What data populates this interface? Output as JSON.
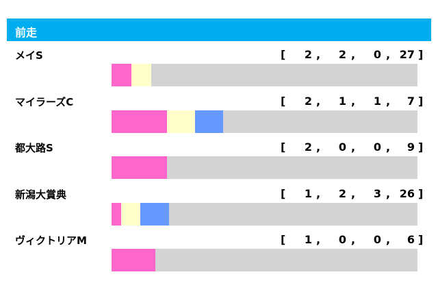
{
  "header": {
    "title": "前走"
  },
  "record_format": {
    "open": "[",
    "separator": ",",
    "close": "]"
  },
  "colors": [
    "#ff66cc",
    "#ffffcc",
    "#6699ff",
    "#d3d3d3"
  ],
  "races": [
    {
      "name": "メイS",
      "record": [
        2,
        2,
        0,
        27
      ]
    },
    {
      "name": "マイラーズC",
      "record": [
        2,
        1,
        1,
        7
      ]
    },
    {
      "name": "都大路S",
      "record": [
        2,
        0,
        0,
        9
      ]
    },
    {
      "name": "新潟大賞典",
      "record": [
        1,
        2,
        3,
        26
      ]
    },
    {
      "name": "ヴィクトリアM",
      "record": [
        1,
        0,
        0,
        6
      ]
    }
  ]
}
